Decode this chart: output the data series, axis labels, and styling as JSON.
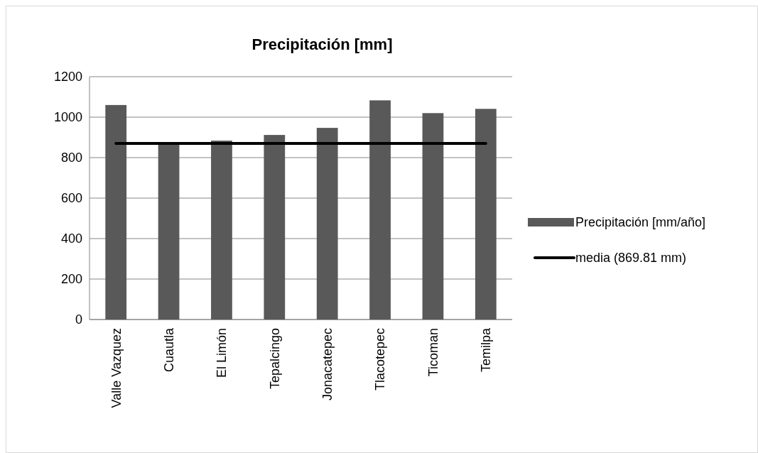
{
  "chart_data": {
    "type": "bar",
    "title": "Precipitación [mm]",
    "categories": [
      "Valle Vazquez",
      "Cuautla",
      "El Limón",
      "Tepalcingo",
      "Jonacatepec",
      "Tlacotepec",
      "Ticoman",
      "Temilpa"
    ],
    "series": [
      {
        "name": "Precipitación [mm/año]",
        "color": "#595959",
        "values": [
          1060,
          868,
          884,
          912,
          947,
          1083,
          1020,
          1041
        ]
      },
      {
        "name": "media (869.81 mm)",
        "type": "line",
        "color": "#000000",
        "values": [
          869.81,
          869.81,
          869.81,
          869.81,
          869.81,
          869.81,
          869.81,
          869.81
        ]
      }
    ],
    "ylim": [
      0,
      1200
    ],
    "yticks": [
      0,
      200,
      400,
      600,
      800,
      1000,
      1200
    ],
    "grid": "y",
    "legend": "right",
    "marker": "none",
    "line_style": "solid"
  }
}
